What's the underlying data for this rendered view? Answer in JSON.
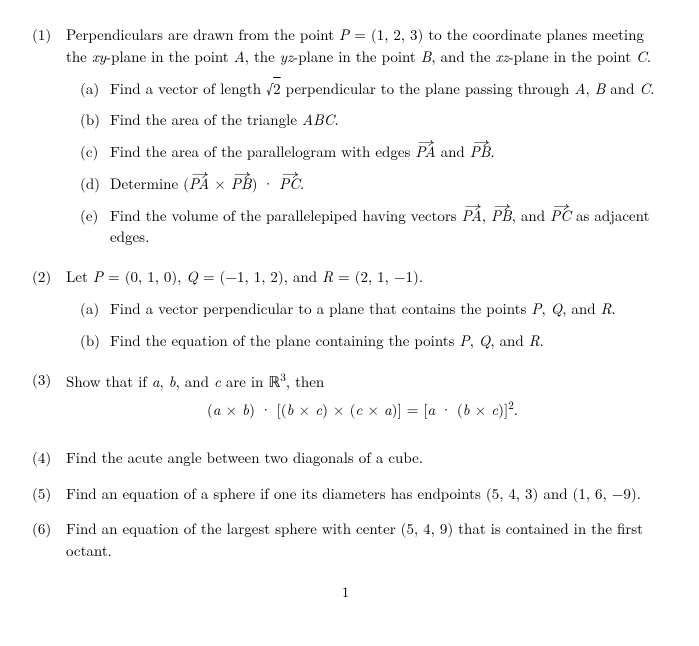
{
  "p1": {
    "num": "(1)",
    "intro_a": "Perpendiculars are drawn from the point ",
    "intro_b": " = (1, 2, 3) to the coordinate planes meeting the ",
    "intro_c": "-plane in the point ",
    "intro_d": ", the ",
    "intro_e": "-plane in the point ",
    "intro_f": ", and the ",
    "intro_g": "-plane in the point ",
    "intro_h": ".",
    "a_num": "(a)",
    "a_text_1": "Find a vector of length √",
    "a_text_2": " perpendicular to the plane passing through ",
    "a_text_3": ", ",
    "a_text_4": " and ",
    "a_text_5": ".",
    "b_num": "(b)",
    "b_text": "Find the area of the triangle ",
    "b_tri": "ABC",
    "b_dot": ".",
    "c_num": "(c)",
    "c_text": "Find the area of the parallelogram with edges ",
    "c_and": " and ",
    "c_dot": ".",
    "d_num": "(d)",
    "d_text": "Determine (",
    "d_times": " × ",
    "d_mid": ") · ",
    "d_dot": ".",
    "e_num": "(e)",
    "e_text_1": "Find the volume of the parallelepiped having vectors ",
    "e_sep": ", ",
    "e_and": ", and ",
    "e_text_2": " as adjacent edges."
  },
  "p2": {
    "num": "(2)",
    "intro": "Let ",
    "p": " = (0, 1, 0), ",
    "q": " = (−1, 1, 2), and ",
    "r": " = (2, 1, −1).",
    "a_num": "(a)",
    "a_text": "Find a vector perpendicular to a plane that contains the points ",
    "sep": ", ",
    "and": ", and ",
    "dot": ".",
    "b_num": "(b)",
    "b_text": "Find the equation of the plane containing the points "
  },
  "p3": {
    "num": "(3)",
    "text_1": "Show that if ",
    "sep": ", ",
    "and": ", and ",
    "text_2": " are in ℝ",
    "three": "3",
    "text_3": ", then",
    "eq_a": "(",
    "eq_b": " × ",
    "eq_c": ") · [(",
    "eq_d": " × ",
    "eq_e": ") × (",
    "eq_f": " × ",
    "eq_g": ")] = [",
    "eq_h": " · (",
    "eq_i": " × ",
    "eq_j": ")]",
    "eq_sq": "2",
    "eq_k": "."
  },
  "p4": {
    "num": "(4)",
    "text": "Find the acute angle between two diagonals of a cube."
  },
  "p5": {
    "num": "(5)",
    "text": "Find an equation of a sphere if one its diameters has endpoints (5, 4, 3) and (1, 6, −9)."
  },
  "p6": {
    "num": "(6)",
    "text": "Find an equation of the largest sphere with center (5, 4, 9) that is contained in the first octant."
  },
  "sym": {
    "P": "P",
    "A": "A",
    "B": "B",
    "C": "C",
    "Q": "Q",
    "R": "R",
    "xy": "xy",
    "yz": "yz",
    "xz": "xz",
    "PA": "PA",
    "PB": "PB",
    "PC": "PC",
    "a": "a⃗",
    "b": "b⃗",
    "c": "c⃗",
    "two": "2"
  },
  "pagenum": "1"
}
